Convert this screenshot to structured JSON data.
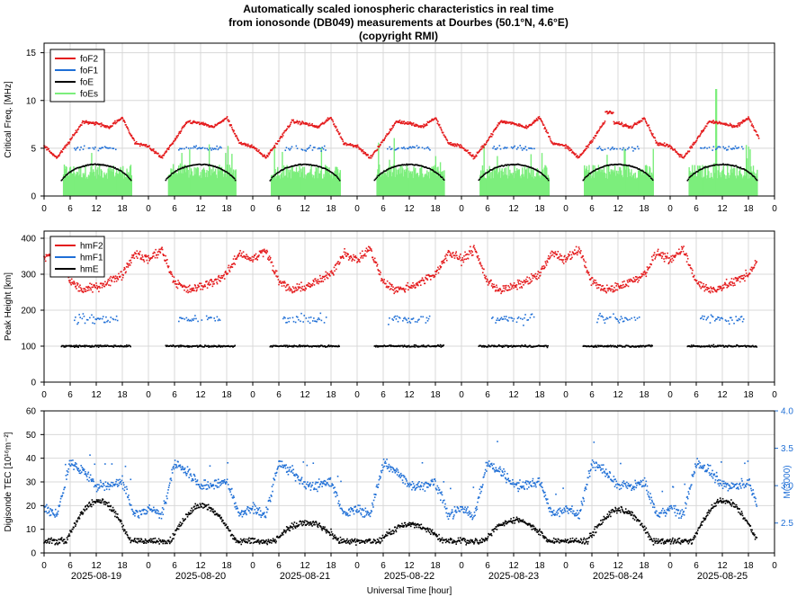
{
  "title": {
    "line1": "Automatically scaled ionospheric characteristics in real time",
    "line2": "from ionosonde (DB049) measurements at Dourbes (50.1°N, 4.6°E)",
    "line3": "(copyright RMI)"
  },
  "colors": {
    "red": "#e41a1c",
    "blue": "#1f6fd6",
    "black": "#000000",
    "green": "#7cee7c",
    "grid": "#d8d8d8"
  },
  "chart_data": [
    {
      "type": "line",
      "ylabel": "Critical Freq. [MHz]",
      "ylim": [
        0,
        16
      ],
      "yticks": [
        "0",
        "5",
        "10",
        "15"
      ],
      "xticks": [
        "0",
        "6",
        "12",
        "18",
        "0",
        "6",
        "12",
        "18",
        "0",
        "6",
        "12",
        "18",
        "0",
        "6",
        "12",
        "18",
        "0",
        "6",
        "12",
        "18",
        "0",
        "6",
        "12",
        "18",
        "0",
        "6",
        "12",
        "18",
        "0"
      ],
      "grid": true,
      "legend_position": "top-left",
      "series": [
        {
          "name": "foF2",
          "color": "red",
          "day_profile_hours": [
            0,
            3,
            6,
            9,
            12,
            15,
            18,
            21
          ],
          "day_profile_values": [
            5.2,
            4.0,
            5.8,
            7.8,
            7.6,
            7.2,
            8.2,
            5.5
          ]
        },
        {
          "name": "foF1",
          "color": "blue",
          "hours_active": [
            7,
            17
          ],
          "typical": 5.0
        },
        {
          "name": "foE",
          "color": "black",
          "hours_active": [
            4,
            20
          ],
          "peak": 3.3
        },
        {
          "name": "foEs",
          "color": "green",
          "hours_active": [
            4,
            20
          ],
          "typical": 3.0,
          "max": 11.2
        }
      ]
    },
    {
      "type": "scatter",
      "ylabel": "Peak Height [km]",
      "ylim": [
        0,
        420
      ],
      "yticks": [
        "0",
        "100",
        "200",
        "300",
        "400"
      ],
      "xticks": [
        "0",
        "6",
        "12",
        "18",
        "0",
        "6",
        "12",
        "18",
        "0",
        "6",
        "12",
        "18",
        "0",
        "6",
        "12",
        "18",
        "0",
        "6",
        "12",
        "18",
        "0",
        "6",
        "12",
        "18",
        "0",
        "6",
        "12",
        "18",
        "0"
      ],
      "grid": true,
      "legend_position": "top-left",
      "series": [
        {
          "name": "hmF2",
          "color": "red",
          "day_profile_hours": [
            0,
            3,
            6,
            9,
            12,
            15,
            18,
            21
          ],
          "day_profile_values": [
            340,
            370,
            280,
            255,
            265,
            280,
            300,
            360
          ]
        },
        {
          "name": "hmF1",
          "color": "blue",
          "hours_active": [
            7,
            17
          ],
          "typical": 175
        },
        {
          "name": "hmE",
          "color": "black",
          "hours_active": [
            4,
            20
          ],
          "typical": 100
        }
      ]
    },
    {
      "type": "scatter",
      "ylabel": "Digisonde TEC [10¹⁶m⁻²]",
      "y2label": "M(3000)",
      "ylim": [
        0,
        60
      ],
      "y2lim": [
        2.1,
        4.0
      ],
      "yticks": [
        "0",
        "10",
        "20",
        "30",
        "40",
        "50",
        "60"
      ],
      "y2ticks": [
        "2.5",
        "3.0",
        "3.5",
        "4.0"
      ],
      "xticks": [
        "0",
        "6",
        "12",
        "18",
        "0",
        "6",
        "12",
        "18",
        "0",
        "6",
        "12",
        "18",
        "0",
        "6",
        "12",
        "18",
        "0",
        "6",
        "12",
        "18",
        "0",
        "6",
        "12",
        "18",
        "0",
        "6",
        "12",
        "18",
        "0"
      ],
      "xlabel": "Universal Time [hour]",
      "dates": [
        "2025-08-19",
        "2025-08-20",
        "2025-08-21",
        "2025-08-22",
        "2025-08-23",
        "2025-08-24",
        "2025-08-25"
      ],
      "grid": true,
      "series": [
        {
          "name": "TEC",
          "color": "black",
          "daily_peak": [
            22,
            20,
            13,
            12,
            14,
            18,
            22
          ]
        },
        {
          "name": "M(3000)",
          "color": "blue",
          "day_profile_hours": [
            0,
            3,
            6,
            9,
            12,
            15,
            18,
            21
          ],
          "day_profile_values": [
            2.7,
            2.6,
            3.3,
            3.2,
            3.0,
            3.0,
            3.05,
            2.6
          ]
        }
      ]
    }
  ]
}
